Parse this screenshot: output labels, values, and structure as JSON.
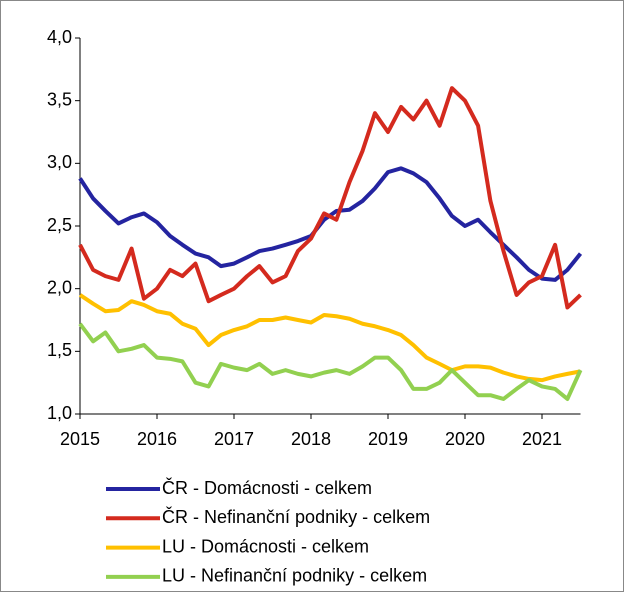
{
  "chart_data": {
    "type": "line",
    "x": [
      2015,
      2015.17,
      2015.33,
      2015.5,
      2015.67,
      2015.83,
      2016,
      2016.17,
      2016.33,
      2016.5,
      2016.67,
      2016.83,
      2017,
      2017.17,
      2017.33,
      2017.5,
      2017.67,
      2017.83,
      2018,
      2018.17,
      2018.33,
      2018.5,
      2018.67,
      2018.83,
      2019,
      2019.17,
      2019.33,
      2019.5,
      2019.67,
      2019.83,
      2020,
      2020.17,
      2020.33,
      2020.5,
      2020.67,
      2020.83,
      2021,
      2021.17,
      2021.33,
      2021.5
    ],
    "xlim": [
      2015,
      2021.5
    ],
    "xticks": [
      2015,
      2016,
      2017,
      2018,
      2019,
      2020,
      2021
    ],
    "ylim": [
      1,
      4
    ],
    "yticks": [
      {
        "value": 1,
        "label": "1,0"
      },
      {
        "value": 1.5,
        "label": "1,5"
      },
      {
        "value": 2,
        "label": "2,0"
      },
      {
        "value": 2.5,
        "label": "2,5"
      },
      {
        "value": 3,
        "label": "3,0"
      },
      {
        "value": 3.5,
        "label": "3,5"
      },
      {
        "value": 4,
        "label": "4,0"
      }
    ],
    "series": [
      {
        "name": "ČR - Domácnosti - celkem",
        "color": "#2424a0",
        "values": [
          2.88,
          2.72,
          2.62,
          2.52,
          2.57,
          2.6,
          2.53,
          2.42,
          2.35,
          2.28,
          2.25,
          2.18,
          2.2,
          2.25,
          2.3,
          2.32,
          2.35,
          2.38,
          2.42,
          2.55,
          2.62,
          2.63,
          2.7,
          2.8,
          2.93,
          2.96,
          2.92,
          2.85,
          2.72,
          2.58,
          2.5,
          2.55,
          2.45,
          2.35,
          2.25,
          2.15,
          2.08,
          2.07,
          2.15,
          2.28
        ]
      },
      {
        "name": "ČR - Nefinanční podniky - celkem",
        "color": "#d42a1e",
        "values": [
          2.35,
          2.15,
          2.1,
          2.07,
          2.32,
          1.92,
          2.0,
          2.15,
          2.1,
          2.2,
          1.9,
          1.95,
          2.0,
          2.1,
          2.18,
          2.05,
          2.1,
          2.3,
          2.4,
          2.6,
          2.55,
          2.85,
          3.1,
          3.4,
          3.25,
          3.45,
          3.35,
          3.5,
          3.3,
          3.6,
          3.5,
          3.3,
          2.7,
          2.3,
          1.95,
          2.05,
          2.1,
          2.35,
          1.85,
          1.95
        ]
      },
      {
        "name": "LU - Domácnosti - celkem",
        "color": "#ffc000",
        "values": [
          1.95,
          1.88,
          1.82,
          1.83,
          1.9,
          1.87,
          1.82,
          1.8,
          1.72,
          1.68,
          1.55,
          1.63,
          1.67,
          1.7,
          1.75,
          1.75,
          1.77,
          1.75,
          1.73,
          1.79,
          1.78,
          1.76,
          1.72,
          1.7,
          1.67,
          1.63,
          1.55,
          1.45,
          1.4,
          1.35,
          1.38,
          1.38,
          1.37,
          1.33,
          1.3,
          1.28,
          1.27,
          1.3,
          1.32,
          1.34
        ]
      },
      {
        "name": "LU - Nefinanční podniky - celkem",
        "color": "#92d050",
        "values": [
          1.72,
          1.58,
          1.65,
          1.5,
          1.52,
          1.55,
          1.45,
          1.44,
          1.42,
          1.25,
          1.22,
          1.4,
          1.37,
          1.35,
          1.4,
          1.32,
          1.35,
          1.32,
          1.3,
          1.33,
          1.35,
          1.32,
          1.38,
          1.45,
          1.45,
          1.35,
          1.2,
          1.2,
          1.25,
          1.35,
          1.25,
          1.15,
          1.15,
          1.12,
          1.2,
          1.27,
          1.22,
          1.2,
          1.12,
          1.35
        ]
      }
    ]
  }
}
